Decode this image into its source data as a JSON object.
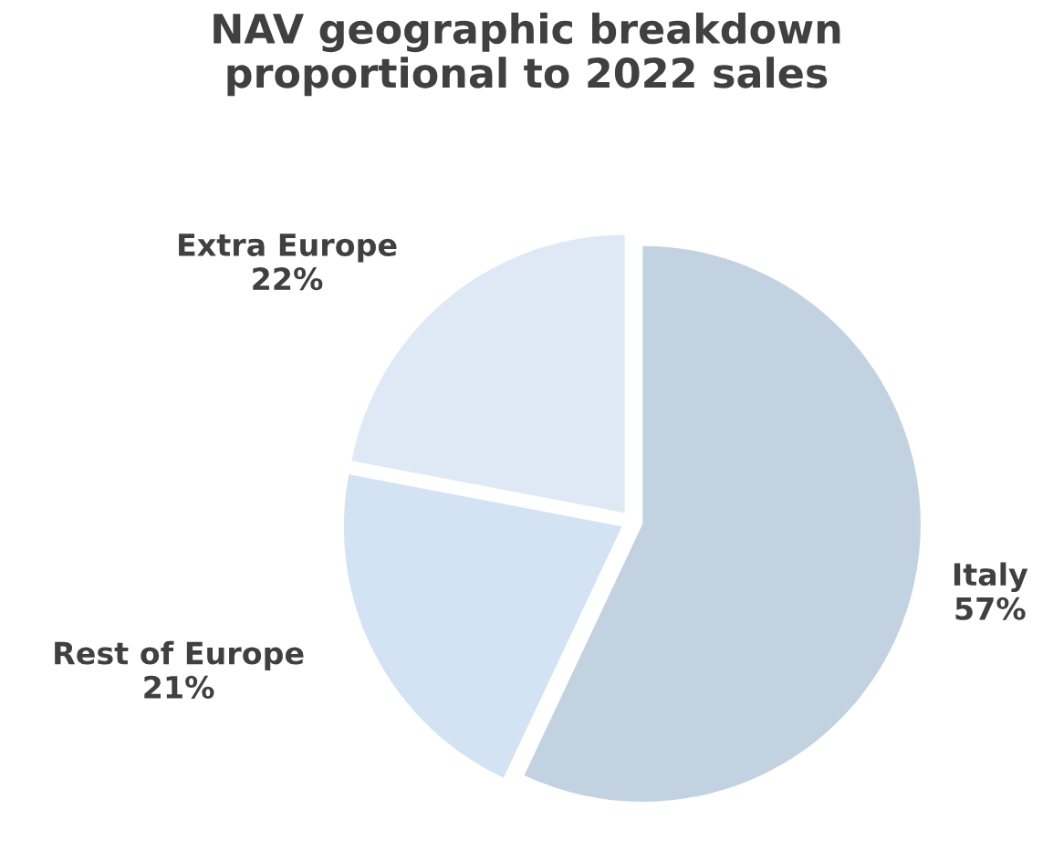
{
  "chart_data": {
    "type": "pie",
    "title": "NAV geographic breakdown\nproportional to 2022 sales",
    "categories": [
      "Italy",
      "Rest of Europe",
      "Extra Europe"
    ],
    "values": [
      57,
      21,
      22
    ],
    "value_labels": [
      "57%",
      "21%",
      "22%"
    ],
    "colors": [
      "#c3d2e1",
      "#d3e3f4",
      "#dee9f5"
    ],
    "legend": false
  }
}
